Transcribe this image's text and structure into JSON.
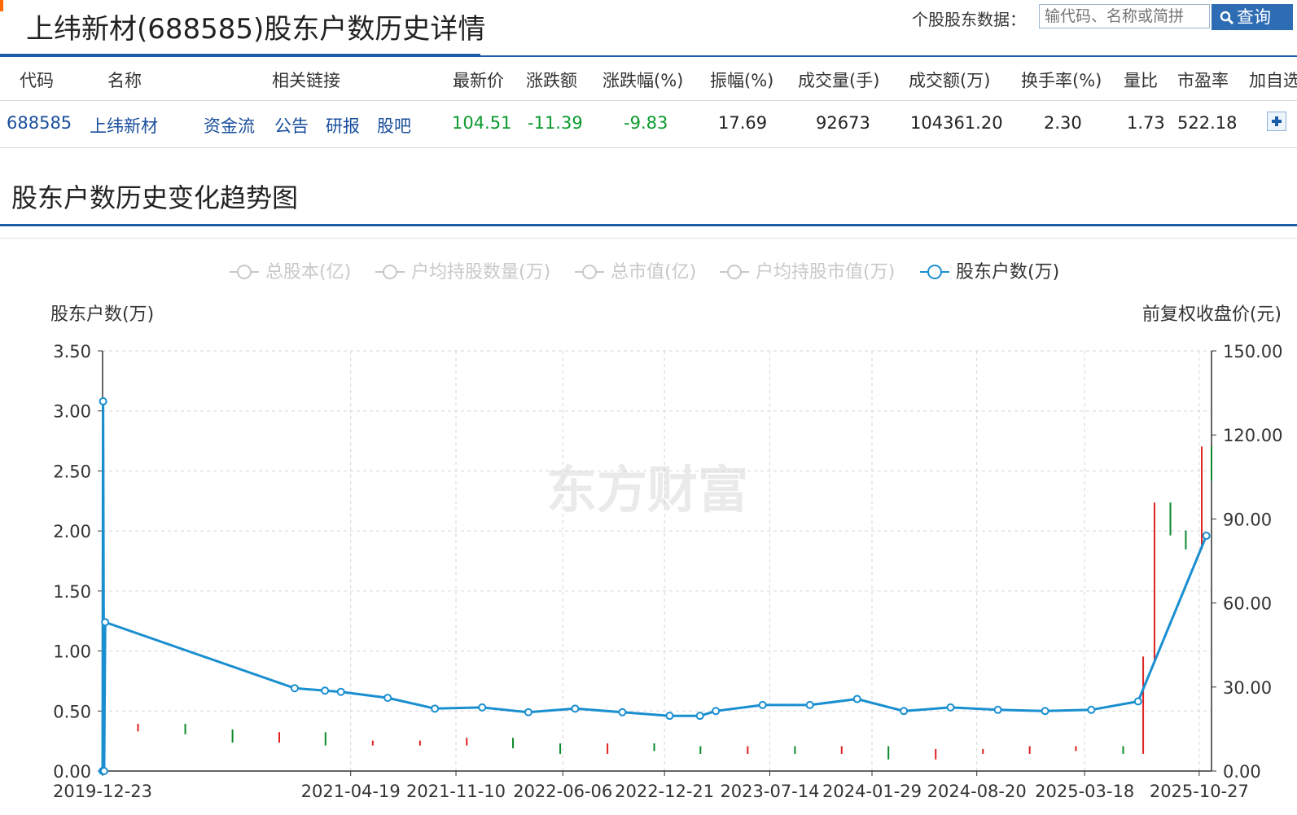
{
  "page": {
    "title": "上纬新材(688585)股东户数历史详情",
    "search_label": "个股股东数据：",
    "search_placeholder": "输代码、名称或简拼",
    "search_button": "查询"
  },
  "quote_table": {
    "headers": [
      "代码",
      "名称",
      "相关链接",
      "最新价",
      "涨跌额",
      "涨跌幅(%)",
      "振幅(%)",
      "成交量(手)",
      "成交额(万)",
      "换手率(%)",
      "量比",
      "市盈率",
      "加自选"
    ],
    "row": {
      "code": "688585",
      "name": "上纬新材",
      "links": [
        "资金流",
        "公告",
        "研报",
        "股吧"
      ],
      "price": "104.51",
      "change": "-11.39",
      "change_pct": "-9.83",
      "amplitude": "17.69",
      "volume": "92673",
      "amount": "104361.20",
      "turnover": "2.30",
      "volume_ratio": "1.73",
      "pe": "522.18"
    }
  },
  "chart_section": {
    "title": "股东户数历史变化趋势图"
  },
  "chart_data": {
    "type": "line",
    "legend": [
      {
        "name": "总股本(亿)",
        "active": false
      },
      {
        "name": "户均持股数量(万)",
        "active": false
      },
      {
        "name": "总市值(亿)",
        "active": false
      },
      {
        "name": "户均持股市值(万)",
        "active": false
      },
      {
        "name": "股东户数(万)",
        "active": true
      }
    ],
    "legend_position": "top-center",
    "y_left": {
      "label": "股东户数(万)",
      "min": 0,
      "max": 3.5,
      "ticks": [
        "0.00",
        "0.50",
        "1.00",
        "1.50",
        "2.00",
        "2.50",
        "3.00",
        "3.50"
      ]
    },
    "y_right": {
      "label": "前复权收盘价(元)",
      "min": 0,
      "max": 150,
      "ticks": [
        "0.00",
        "30.00",
        "60.00",
        "90.00",
        "120.00",
        "150.00"
      ]
    },
    "x_range": [
      "2019-12-23",
      "2025-11-20"
    ],
    "x_ticks": [
      "2019-12-23",
      "2021-04-19",
      "2021-11-10",
      "2022-06-06",
      "2022-12-21",
      "2023-07-14",
      "2024-01-29",
      "2024-08-20",
      "2025-03-18",
      "2025-10-27"
    ],
    "grid": true,
    "watermark": "东方财富",
    "series": [
      {
        "name": "股东户数(万)",
        "color": "#1a8fd0",
        "x": [
          "2019-12-23",
          "2019-12-24",
          "2019-12-26",
          "2019-12-28",
          "2020-12-31",
          "2021-02-28",
          "2021-03-31",
          "2021-06-30",
          "2021-09-30",
          "2021-12-31",
          "2022-03-31",
          "2022-06-30",
          "2022-09-30",
          "2022-12-31",
          "2023-02-28",
          "2023-03-31",
          "2023-06-30",
          "2023-09-30",
          "2023-12-31",
          "2024-03-31",
          "2024-06-30",
          "2024-09-30",
          "2024-12-31",
          "2025-03-31",
          "2025-06-30",
          "2025-11-10"
        ],
        "y": [
          0.0,
          3.08,
          0.0,
          1.24,
          0.69,
          0.67,
          0.66,
          0.61,
          0.52,
          0.53,
          0.49,
          0.52,
          0.49,
          0.46,
          0.46,
          0.5,
          0.55,
          0.55,
          0.6,
          0.5,
          0.53,
          0.51,
          0.5,
          0.51,
          0.58,
          1.96
        ]
      },
      {
        "name": "前复权收盘价(元)",
        "type": "candlestick",
        "up_color": "#e02020",
        "down_color": "#0a8a2a",
        "x": [
          "2019-12-23",
          "2020-03-01",
          "2020-06-01",
          "2020-09-01",
          "2020-12-01",
          "2021-03-01",
          "2021-06-01",
          "2021-09-01",
          "2021-12-01",
          "2022-03-01",
          "2022-06-01",
          "2022-09-01",
          "2022-12-01",
          "2023-03-01",
          "2023-06-01",
          "2023-09-01",
          "2023-12-01",
          "2024-03-01",
          "2024-06-01",
          "2024-09-01",
          "2024-12-01",
          "2025-03-01",
          "2025-06-01",
          "2025-07-10",
          "2025-08-01",
          "2025-09-01",
          "2025-10-01",
          "2025-11-01",
          "2025-11-20"
        ],
        "close": [
          15,
          16,
          14,
          11,
          13,
          10,
          10,
          10,
          11,
          9,
          7,
          9,
          8,
          7,
          8,
          7,
          8,
          5,
          7,
          7,
          8,
          8,
          7,
          40,
          95,
          85,
          80,
          115,
          104.5
        ]
      }
    ]
  }
}
